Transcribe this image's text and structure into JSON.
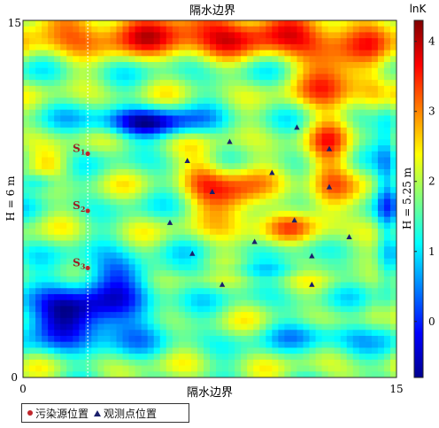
{
  "chart_data": {
    "type": "heatmap",
    "title_top": "隔水边界",
    "xlabel": "隔水边界",
    "ylabel_left": "H = 6 m",
    "ylabel_right": "H = 5.25 m",
    "xlim": [
      0,
      15
    ],
    "ylim": [
      0,
      15
    ],
    "x_ticks": [
      "0",
      "15"
    ],
    "y_ticks": [
      "0",
      "15"
    ],
    "colorbar": {
      "label": "lnK",
      "range": [
        -0.8,
        4.3
      ],
      "ticks": [
        "0",
        "1",
        "2",
        "3",
        "4"
      ],
      "tick_values": [
        0,
        1,
        2,
        3,
        4
      ],
      "colormap": "jet"
    },
    "source_line_x": 2.6,
    "sources": [
      {
        "label": "S",
        "sub": "1",
        "x": 2.6,
        "y": 9.4
      },
      {
        "label": "S",
        "sub": "2",
        "x": 2.6,
        "y": 7.0
      },
      {
        "label": "S",
        "sub": "3",
        "x": 2.6,
        "y": 4.6
      }
    ],
    "observation_points": [
      {
        "x": 11.0,
        "y": 10.5
      },
      {
        "x": 8.3,
        "y": 9.9
      },
      {
        "x": 12.3,
        "y": 9.6
      },
      {
        "x": 6.6,
        "y": 9.1
      },
      {
        "x": 10.0,
        "y": 8.6
      },
      {
        "x": 7.6,
        "y": 7.8
      },
      {
        "x": 12.3,
        "y": 8.0
      },
      {
        "x": 5.9,
        "y": 6.5
      },
      {
        "x": 10.9,
        "y": 6.6
      },
      {
        "x": 13.1,
        "y": 5.9
      },
      {
        "x": 9.3,
        "y": 5.7
      },
      {
        "x": 6.8,
        "y": 5.2
      },
      {
        "x": 11.6,
        "y": 5.1
      },
      {
        "x": 8.0,
        "y": 3.9
      },
      {
        "x": 11.6,
        "y": 3.9
      }
    ],
    "legend": {
      "position": "bottom-left",
      "source_label": "污染源位置",
      "obs_label": "观测点位置",
      "source_color": "#c0262b",
      "obs_color": "#1a1f6b"
    }
  }
}
